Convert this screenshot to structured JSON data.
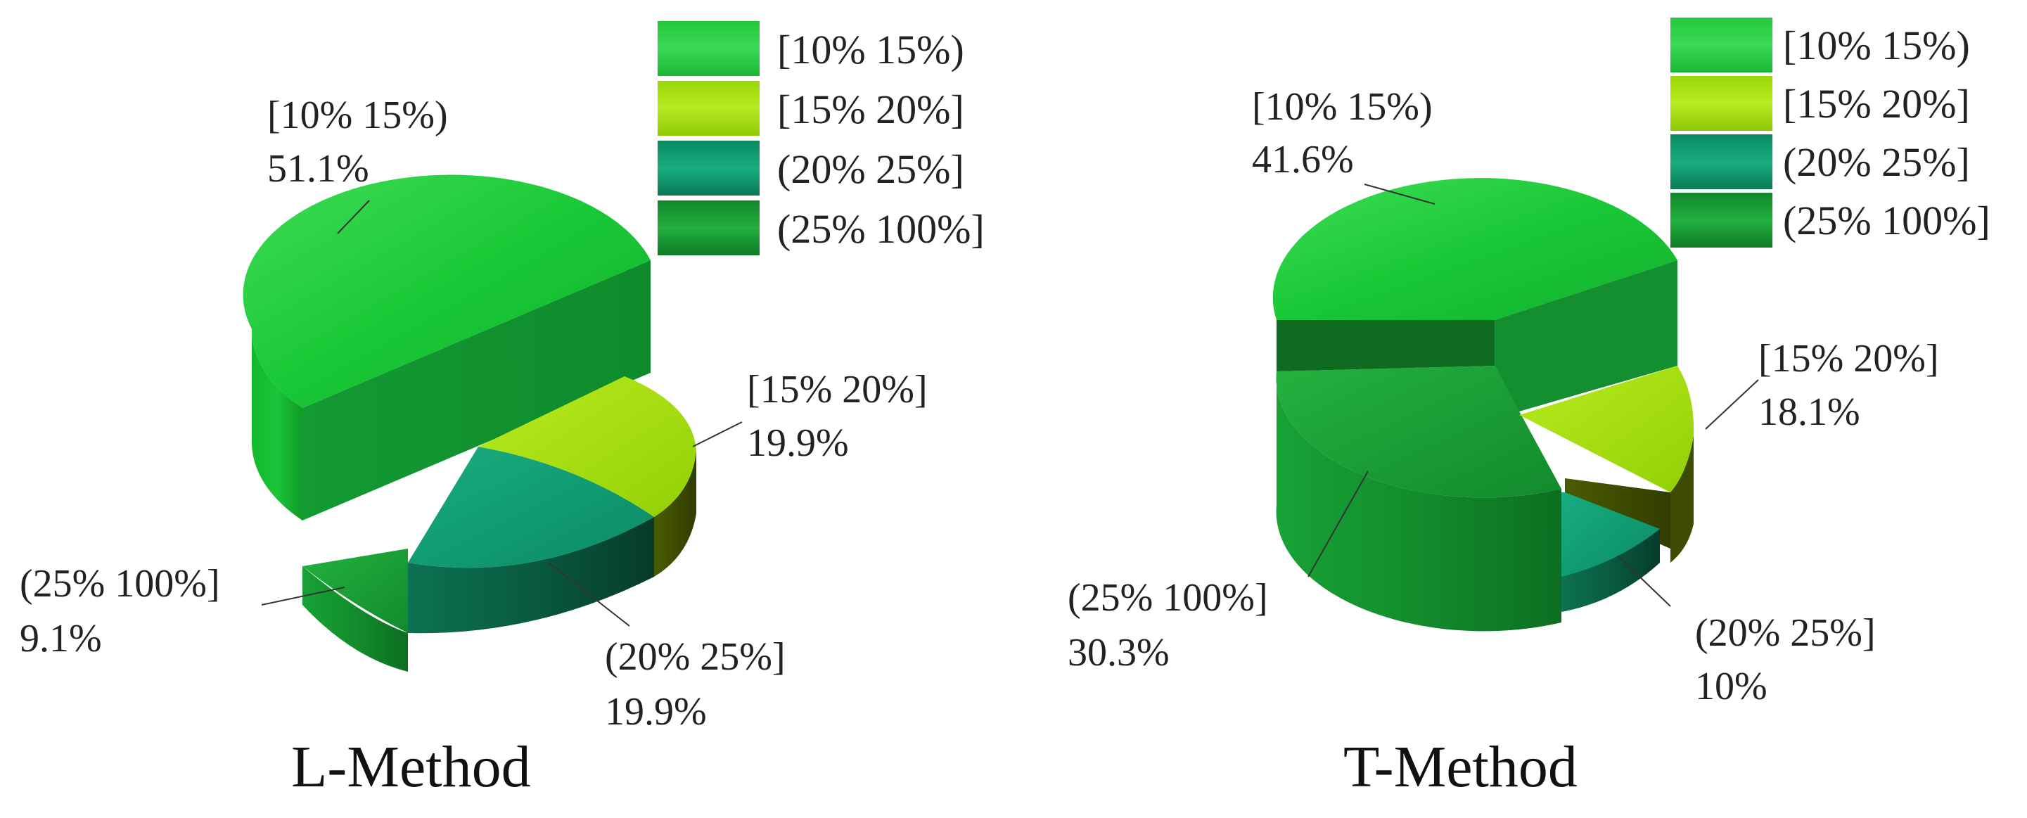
{
  "colors": {
    "range1": "#19c836",
    "range2": "#a6e00c",
    "range3": "#0f9e73",
    "range4": "#159a34",
    "text": "#222222"
  },
  "chart_data": [
    {
      "type": "pie",
      "title": "L-Method",
      "categories": [
        "[10% 15%)",
        "[15% 20%]",
        "(20% 25%]",
        "(25% 100%]"
      ],
      "values": [
        51.1,
        19.9,
        19.9,
        9.1
      ],
      "value_labels": [
        "51.1%",
        "19.9%",
        "19.9%",
        "9.1%"
      ],
      "legend": [
        "[10% 15%)",
        "[15% 20%]",
        "(20% 25%]",
        "(25% 100%]"
      ],
      "legend_position": "top-right",
      "style": "3d"
    },
    {
      "type": "pie",
      "title": "T-Method",
      "categories": [
        "[10% 15%)",
        "[15% 20%]",
        "(20% 25%]",
        "(25% 100%]"
      ],
      "values": [
        41.6,
        18.1,
        10,
        30.3
      ],
      "value_labels": [
        "41.6%",
        "18.1%",
        "10%",
        "30.3%"
      ],
      "legend": [
        "[10% 15%)",
        "[15% 20%]",
        "(20% 25%]",
        "(25% 100%]"
      ],
      "legend_position": "top-right",
      "style": "3d"
    }
  ]
}
